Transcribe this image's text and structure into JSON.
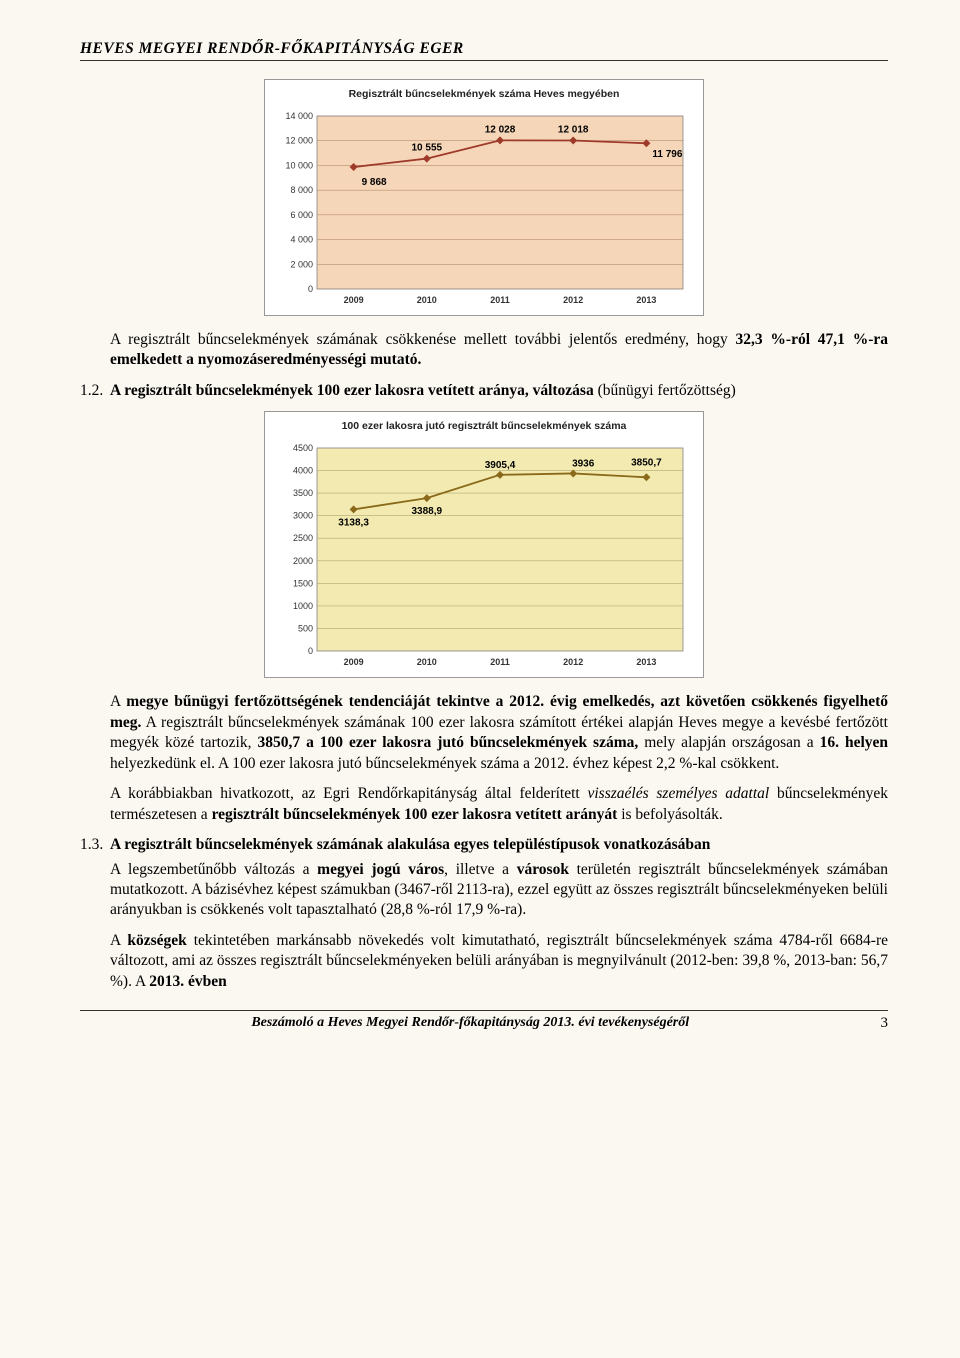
{
  "header": "HEVES MEGYEI RENDŐR-FŐKAPITÁNYSÁG EGER",
  "chart1": {
    "title": "Regisztrált bűncselekmények száma Heves megyében",
    "type": "line",
    "categories": [
      "2009",
      "2010",
      "2011",
      "2012",
      "2013"
    ],
    "values": [
      9868,
      10555,
      12028,
      12018,
      11796
    ],
    "value_labels": [
      "9 868",
      "10 555",
      "12 028",
      "12 018",
      "11 796"
    ],
    "y_ticks": [
      0,
      2000,
      4000,
      6000,
      8000,
      10000,
      12000,
      14000
    ],
    "y_tick_labels": [
      "0",
      "2 000",
      "4 000",
      "6 000",
      "8 000",
      "10 000",
      "12 000",
      "14 000"
    ],
    "ylim": [
      0,
      14000
    ],
    "plot_bg": "#f6d6b8",
    "outer_bg": "#ffffff",
    "grid_color": "#b89070",
    "line_color": "#9e3a2a",
    "marker_color": "#9e3a2a",
    "axis_font": 9,
    "label_font": 10,
    "label_weight": "bold"
  },
  "para_after_chart1": "A regisztrált bűncselekmények számának csökkenése mellett további jelentős eredmény, hogy 32,3 %-ról 47,1 %-ra emelkedett a nyomozáseredményességi mutató.",
  "sec12_num": "1.2.",
  "sec12_title": "A regisztrált bűncselekmények 100 ezer lakosra vetített aránya, változása (bűnügyi fertőzöttség)",
  "chart2": {
    "title": "100 ezer lakosra jutó regisztrált bűncselekmények száma",
    "type": "line",
    "categories": [
      "2009",
      "2010",
      "2011",
      "2012",
      "2013"
    ],
    "values": [
      3138.3,
      3388.9,
      3905.4,
      3936,
      3850.7
    ],
    "value_labels": [
      "3138,3",
      "3388,9",
      "3905,4",
      "3936",
      "3850,7"
    ],
    "y_ticks": [
      0,
      500,
      1000,
      1500,
      2000,
      2500,
      3000,
      3500,
      4000,
      4500
    ],
    "y_tick_labels": [
      "0",
      "500",
      "1000",
      "1500",
      "2000",
      "2500",
      "3000",
      "3500",
      "4000",
      "4500"
    ],
    "ylim": [
      0,
      4500
    ],
    "plot_bg": "#f2eab0",
    "outer_bg": "#ffffff",
    "grid_color": "#b0aa70",
    "line_color": "#8a6a1a",
    "marker_color": "#8a6a1a",
    "axis_font": 9,
    "label_font": 10,
    "label_weight": "bold"
  },
  "para_after_chart2_a": "A megye bűnügyi fertőzöttségének tendenciáját tekintve a 2012. évig emelkedés, azt követően csökkenés figyelhető meg. A regisztrált bűncselekmények számának 100 ezer lakosra számított értékei alapján Heves megye a kevésbé fertőzött megyék közé tartozik, 3850,7 a 100 ezer lakosra jutó bűncselekmények száma, mely alapján országosan a 16. helyen helyezkedünk el. A 100 ezer lakosra jutó bűncselekmények száma a 2012. évhez képest 2,2 %-kal csökkent.",
  "para_after_chart2_b": "A korábbiakban hivatkozott, az Egri Rendőrkapitányság által felderített visszaélés személyes adattal bűncselekmények természetesen a regisztrált bűncselekmények 100 ezer lakosra vetített arányát is befolyásolták.",
  "sec13_num": "1.3.",
  "sec13_title": "A regisztrált bűncselekmények számának alakulása egyes településtípusok vonatkozásában",
  "sec13_p1": "A legszembetűnőbb változás a megyei jogú város, illetve a városok területén regisztrált bűncselekmények számában mutatkozott. A bázisévhez képest számukban (3467-ről 2113-ra), ezzel együtt az összes regisztrált bűncselekményeken belüli arányukban is csökkenés volt tapasztalható (28,8 %-ról 17,9 %-ra).",
  "sec13_p2": "A községek tekintetében markánsabb növekedés volt kimutatható, regisztrált bűncselekmények száma 4784-ről 6684-re változott, ami az összes regisztrált bűncselekményeken belüli arányában is megnyilvánult (2012-ben: 39,8 %, 2013-ban: 56,7 %). A 2013. évben",
  "footer_text": "Beszámoló a Heves Megyei Rendőr-főkapitányság 2013. évi tevékenységéről",
  "page_number": "3"
}
